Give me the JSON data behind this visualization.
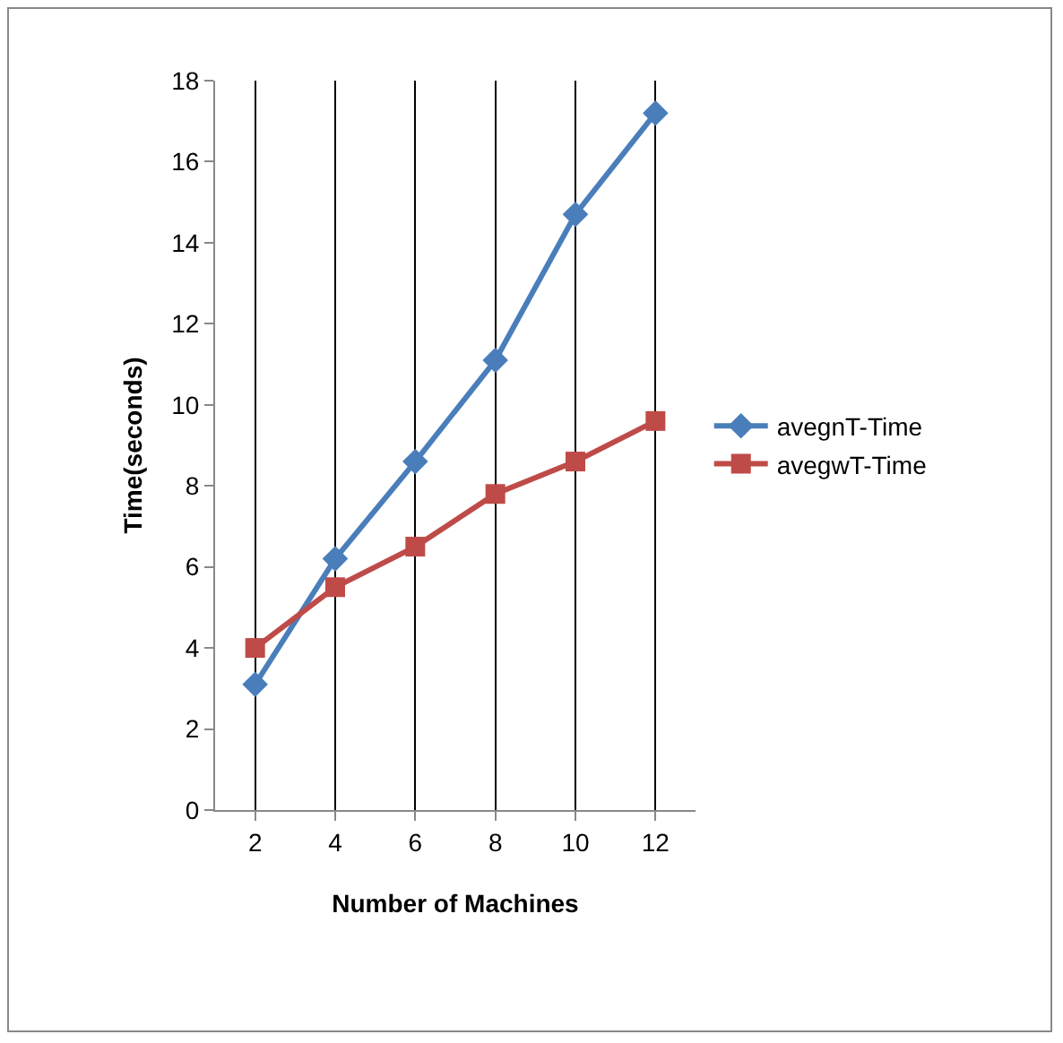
{
  "chart_data": {
    "type": "line",
    "xlabel": "Number of Machines",
    "ylabel": "Time(seconds)",
    "categories": [
      "2",
      "4",
      "6",
      "8",
      "10",
      "12"
    ],
    "series": [
      {
        "name": "avegnT-Time",
        "color": "#4a7ebb",
        "marker": "diamond",
        "values": [
          3.1,
          6.2,
          8.6,
          11.1,
          14.7,
          17.2
        ]
      },
      {
        "name": "avegwT-Time",
        "color": "#be4b48",
        "marker": "square",
        "values": [
          4.0,
          5.5,
          6.5,
          7.8,
          8.6,
          9.6
        ]
      }
    ],
    "ylim": [
      0,
      18
    ],
    "yticks": [
      0,
      2,
      4,
      6,
      8,
      10,
      12,
      14,
      16,
      18
    ],
    "grid": "x",
    "legend": "right"
  }
}
